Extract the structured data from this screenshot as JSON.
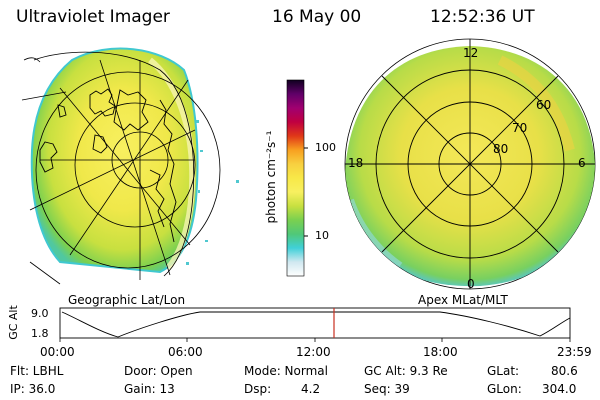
{
  "header": {
    "instrument": "Ultraviolet Imager",
    "date": "16 May 00",
    "time": "12:52:36 UT"
  },
  "left_panel": {
    "caption": "Geographic Lat/Lon"
  },
  "right_panel": {
    "caption": "Apex MLat/MLT",
    "mlt_labels": {
      "top": "12",
      "left": "18",
      "right": "6",
      "bottom": "0"
    },
    "lat_labels": [
      "60",
      "70",
      "80"
    ]
  },
  "colorbar": {
    "label": "photon cm⁻²s⁻¹",
    "ticks": [
      "100",
      "10"
    ],
    "colors": [
      "#ffffff",
      "#d0e8f0",
      "#40d0d8",
      "#50c878",
      "#7ad050",
      "#c8e040",
      "#f8f060",
      "#f8e848",
      "#f8d040",
      "#f8a020",
      "#e03818",
      "#c00040",
      "#a00070",
      "#600068",
      "#100020"
    ]
  },
  "timeline": {
    "axis_label": "GC Alt",
    "y_ticks": [
      "9.0",
      "1.8"
    ],
    "x_ticks": [
      "00:00",
      "06:00",
      "12:00",
      "18:00",
      "23:59"
    ],
    "marker_color": "#c83020"
  },
  "status": {
    "filter": "Flt: LBHL",
    "ip": "IP: 36.0",
    "door": "Door: Open",
    "gain": "Gain: 13",
    "mode": "Mode: Normal",
    "dsp_label": "Dsp:",
    "dsp_value": "4.2",
    "gc_alt": "GC Alt: 9.3 Re",
    "seq": "Seq: 39",
    "glat_label": "GLat:",
    "glat_value": "80.6",
    "glon_label": "GLon:",
    "glon_value": "304.0"
  }
}
